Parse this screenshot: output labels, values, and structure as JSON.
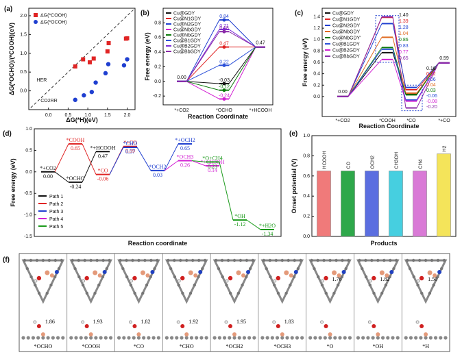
{
  "chart_data": [
    {
      "panel": "(a)",
      "type": "scatter",
      "xlabel": "ΔG(*H)(eV)",
      "ylabel": "ΔG(*OCHO)/(*COOH)(eV)",
      "xlim": [
        -0.5,
        2.2
      ],
      "ylim": [
        -0.5,
        2.2
      ],
      "xticks": [
        "0.0",
        "0.5",
        "1.0",
        "1.5",
        "2.0"
      ],
      "yticks": [
        "0.0",
        "0.5",
        "1.0",
        "1.5",
        "2.0"
      ],
      "annotations": [
        "HER",
        "CO2RR"
      ],
      "series": [
        {
          "name": "ΔG(*COOH)",
          "color": "#e02424",
          "marker": "square",
          "points": [
            [
              0.68,
              0.65
            ],
            [
              0.88,
              0.84
            ],
            [
              1.05,
              0.76
            ],
            [
              1.15,
              0.86
            ],
            [
              1.5,
              1.05
            ],
            [
              1.53,
              1.27
            ],
            [
              1.97,
              1.39
            ],
            [
              2.0,
              1.4
            ]
          ]
        },
        {
          "name": "ΔG(*OCOH)",
          "color": "#1f3fd0",
          "marker": "circle",
          "points": [
            [
              0.68,
              -0.24
            ],
            [
              0.9,
              -0.12
            ],
            [
              1.1,
              -0.03
            ],
            [
              1.2,
              0.22
            ],
            [
              1.45,
              0.47
            ],
            [
              1.52,
              0.71
            ],
            [
              1.92,
              0.68
            ],
            [
              2.0,
              0.84
            ]
          ]
        }
      ]
    },
    {
      "panel": "(b)",
      "type": "line",
      "xlabel": "Reaction Coordinate",
      "ylabel": "Free energy (eV)",
      "categories": [
        "*+CO2",
        "*OCHO",
        "*+HCOOH"
      ],
      "ylim": [
        -0.32,
        1.0
      ],
      "yticks": [
        "-0.2",
        "0.0",
        "0.2",
        "0.4",
        "0.6",
        "0.8"
      ],
      "series": [
        {
          "name": "Cu@GDY",
          "color": "#111111",
          "values": [
            0.0,
            -0.03,
            0.47
          ],
          "label": "-0.03"
        },
        {
          "name": "Cu@N1GDY",
          "color": "#e02424",
          "values": [
            0.0,
            0.47,
            0.47
          ],
          "label": "0.47"
        },
        {
          "name": "Cu@N2GDY",
          "color": "#1f3fd0",
          "values": [
            0.0,
            0.84,
            0.47
          ],
          "label": "0.84"
        },
        {
          "name": "Cu@NbGDY",
          "color": "#d21fd2",
          "values": [
            0.0,
            -0.24,
            0.47
          ],
          "label": "-0.24"
        },
        {
          "name": "Cu@NbGDY",
          "color": "#0a7a0a",
          "values": [
            0.0,
            -0.12,
            0.47
          ],
          "label": "-0.12"
        },
        {
          "name": "Cu@B1GDY",
          "color": "#2a4fd8",
          "values": [
            0.0,
            0.22,
            0.47
          ],
          "label": "0.22"
        },
        {
          "name": "Cu@B2GDY",
          "color": "#7a2ad8",
          "values": [
            0.0,
            0.71,
            0.47
          ],
          "label": "0.71"
        },
        {
          "name": "Cu@BbGDY",
          "color": "#8a2aa8",
          "values": [
            0.0,
            0.68,
            0.47
          ],
          "label": "0.68"
        }
      ],
      "start_label": "0.00",
      "end_label": "0.47"
    },
    {
      "panel": "(c)",
      "type": "line",
      "xlabel": "Reaction Coordinate",
      "ylabel": "Free energy (eV)",
      "categories": [
        "*+CO2",
        "*COOH",
        "*CO",
        "*+CO"
      ],
      "ylim": [
        -0.35,
        1.55
      ],
      "yticks": [
        "0.0",
        "0.2",
        "0.4",
        "0.6",
        "0.8",
        "1.0",
        "1.2",
        "1.4"
      ],
      "series": [
        {
          "name": "Cu@GDY",
          "color": "#111111",
          "values": [
            0.0,
            0.77,
            0.04,
            0.59
          ]
        },
        {
          "name": "Cu@N1GDY",
          "color": "#e02424",
          "values": [
            0.0,
            1.39,
            0.12,
            0.59
          ]
        },
        {
          "name": "Cu@N2GDY",
          "color": "#1f3fd0",
          "values": [
            0.0,
            1.28,
            0.16,
            0.59
          ]
        },
        {
          "name": "Cu@NbGDY",
          "color": "#e06a1f",
          "values": [
            0.0,
            1.04,
            0.06,
            0.59
          ]
        },
        {
          "name": "Cu@NbGDY'",
          "color": "#0a7a0a",
          "values": [
            0.0,
            0.86,
            0.03,
            0.59
          ]
        },
        {
          "name": "Cu@B1GDY",
          "color": "#2a4fd8",
          "values": [
            0.0,
            0.83,
            -0.06,
            0.59
          ]
        },
        {
          "name": "Cu@B2GDY",
          "color": "#d21fd2",
          "values": [
            0.0,
            0.65,
            -0.08,
            0.59
          ]
        },
        {
          "name": "Cu@BbGDY",
          "color": "#8a2aa8",
          "values": [
            0.0,
            1.4,
            -0.2,
            0.59
          ]
        }
      ],
      "cooh_labels": [
        "1.40",
        "1.39",
        "1.28",
        "1.04",
        "0.86",
        "0.83",
        "0.77",
        "0.65"
      ],
      "co_labels": [
        "0.16",
        "0.12",
        "0.06",
        "0.04",
        "0.03",
        "-0.06",
        "-0.08",
        "-0.20"
      ],
      "start_label": "0.00",
      "end_label": "0.59"
    },
    {
      "panel": "(d)",
      "type": "line",
      "xlabel": "Reaction coordinate",
      "ylabel": "Free energy (eV)",
      "ylim": [
        -1.5,
        1.0
      ],
      "yticks": [
        "-1.5",
        "-1.0",
        "-0.5",
        "0.0",
        "0.5",
        "1.0"
      ],
      "legend": [
        "Path 1",
        "Path 2",
        "Path 3",
        "Path 4",
        "Path 5"
      ],
      "levels": [
        {
          "step": 0,
          "value": 0.0,
          "label": "*+CO2",
          "path": "Path 1"
        },
        {
          "step": 1,
          "value": -0.24,
          "label": "*OCHO",
          "path": "Path 1"
        },
        {
          "step": 1,
          "value": 0.65,
          "label": "*COOH",
          "path": "Path 2"
        },
        {
          "step": 2,
          "value": 0.47,
          "label": "*+HCOOH",
          "path": "Path 1"
        },
        {
          "step": 2,
          "value": -0.06,
          "label": "*CO",
          "path": "Path 2"
        },
        {
          "step": 3,
          "value": 0.59,
          "label": "*+CO",
          "path": "Path 2"
        },
        {
          "step": 3,
          "value": 0.57,
          "label": "*CHO",
          "path": "Path 3"
        },
        {
          "step": 4,
          "value": 0.03,
          "label": "*OCH2",
          "path": "Path 3"
        },
        {
          "step": 5,
          "value": 0.65,
          "label": "*+OCH2",
          "path": "Path 3"
        },
        {
          "step": 5,
          "value": 0.26,
          "label": "*OCH3",
          "path": "Path 4"
        },
        {
          "step": 6,
          "value": 0.14,
          "label": "*+CH3OH",
          "path": "Path 4"
        },
        {
          "step": 6,
          "value": 0.23,
          "label": "*O+CH4",
          "path": "Path 5"
        },
        {
          "step": 7,
          "value": -1.12,
          "label": "*OH",
          "path": "Path 5"
        },
        {
          "step": 8,
          "value": -1.34,
          "label": "*+H2O",
          "path": "Path 5"
        }
      ]
    },
    {
      "panel": "(e)",
      "type": "bar",
      "xlabel": "Products",
      "ylabel": "Onset potential (V)",
      "categories": [
        "HCOOH",
        "CO",
        "OCH2",
        "CH3OH",
        "CH4",
        "H2"
      ],
      "values": [
        0.65,
        0.65,
        0.65,
        0.65,
        0.65,
        0.82
      ],
      "colors": [
        "#f07a7a",
        "#2ea84a",
        "#5b6ee0",
        "#46cfe0",
        "#d97ad6",
        "#f4e45a"
      ],
      "ylim": [
        0.0,
        1.0
      ],
      "yticks": [
        "0.0",
        "0.2",
        "0.4",
        "0.6",
        "0.8",
        "1.0"
      ]
    }
  ],
  "panel_f": {
    "panel": "(f)",
    "structures": [
      {
        "label": "*OCHO",
        "bond": "1.86"
      },
      {
        "label": "*COOH",
        "bond": "1.93"
      },
      {
        "label": "*CO",
        "bond": "1.82"
      },
      {
        "label": "*CHO",
        "bond": "1.92"
      },
      {
        "label": "*OCH2",
        "bond": "1.95"
      },
      {
        "label": "*OCH3",
        "bond": "1.83"
      },
      {
        "label": "*O",
        "bond": "1.76"
      },
      {
        "label": "*OH",
        "bond": "1.82"
      },
      {
        "label": "*H",
        "bond": "1.50"
      }
    ]
  }
}
